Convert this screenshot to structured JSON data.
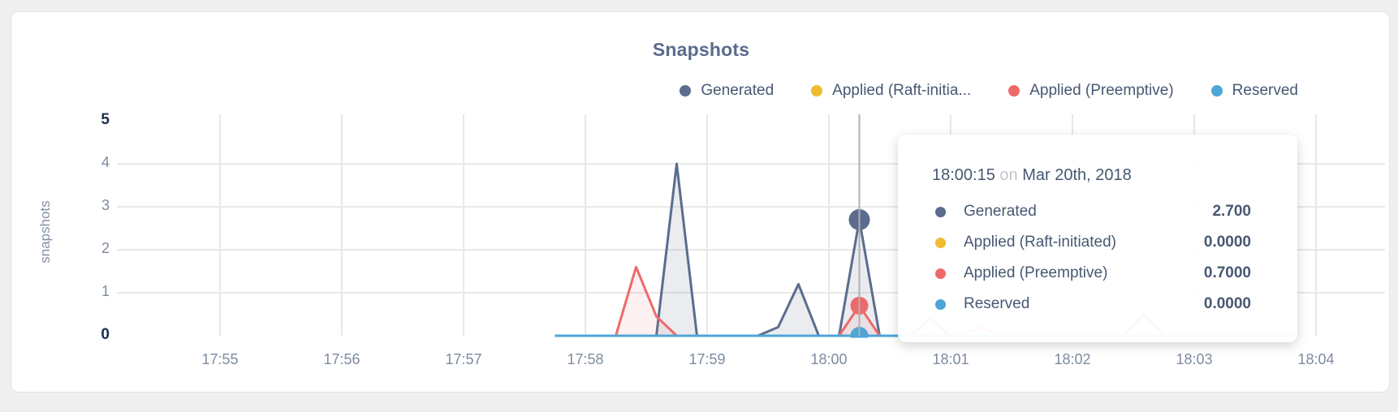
{
  "title": "Snapshots",
  "legend": {
    "items": [
      {
        "label": "Generated",
        "color": "#5b6c8e"
      },
      {
        "label": "Applied (Raft-initia...",
        "color": "#f0bb31"
      },
      {
        "label": "Applied (Preemptive)",
        "color": "#ee6a6a"
      },
      {
        "label": "Reserved",
        "color": "#4da5d8"
      }
    ]
  },
  "tooltip": {
    "time": "18:00:15",
    "conjunction": "on",
    "date": "Mar 20th, 2018",
    "rows": [
      {
        "label": "Generated",
        "value": "2.700",
        "color": "#5b6c8e"
      },
      {
        "label": "Applied (Raft-initiated)",
        "value": "0.0000",
        "color": "#f0bb31"
      },
      {
        "label": "Applied (Preemptive)",
        "value": "0.7000",
        "color": "#ee6a6a"
      },
      {
        "label": "Reserved",
        "value": "0.0000",
        "color": "#4da5d8"
      }
    ]
  },
  "chart_data": {
    "type": "area",
    "title": "Snapshots",
    "ylabel": "snapshots",
    "xlabel": "",
    "ylim": [
      0,
      5
    ],
    "y_ticks": [
      0,
      1,
      2,
      3,
      4,
      5
    ],
    "x_ticks": [
      "17:55",
      "17:56",
      "17:57",
      "17:58",
      "17:59",
      "18:00",
      "18:01",
      "18:02",
      "18:03",
      "18:04"
    ],
    "grid": true,
    "legend_position": "top-right",
    "colors": {
      "grid": "#e8e8e8",
      "hover_line": "#b0b0b0",
      "axis_text": "#7d8ba1",
      "axis_text_bold": "#1b2c4e"
    },
    "series": [
      {
        "name": "Generated",
        "color": "#5b6c8e",
        "fill": "rgba(91,108,142,0.13)",
        "points": [
          [
            "17:57:45",
            0
          ],
          [
            "17:58:35",
            0
          ],
          [
            "17:58:45",
            4.0
          ],
          [
            "17:58:55",
            0
          ],
          [
            "17:59:25",
            0
          ],
          [
            "17:59:35",
            0.2
          ],
          [
            "17:59:45",
            1.2
          ],
          [
            "17:59:55",
            0
          ],
          [
            "18:00:05",
            0
          ],
          [
            "18:00:15",
            2.7
          ],
          [
            "18:00:25",
            0
          ],
          [
            "18:00:40",
            0
          ],
          [
            "18:00:50",
            0.4
          ],
          [
            "18:01:00",
            0
          ],
          [
            "18:02:25",
            0
          ],
          [
            "18:02:35",
            0.5
          ],
          [
            "18:02:45",
            0
          ],
          [
            "18:03:50",
            0
          ]
        ]
      },
      {
        "name": "Applied (Raft-initiated)",
        "color": "#f0bb31",
        "fill": "none",
        "points": [
          [
            "17:57:45",
            0
          ],
          [
            "18:03:50",
            0
          ]
        ]
      },
      {
        "name": "Applied (Preemptive)",
        "color": "#ee6a6a",
        "fill": "rgba(238,106,106,0.10)",
        "points": [
          [
            "17:57:45",
            0
          ],
          [
            "17:58:15",
            0
          ],
          [
            "17:58:25",
            1.6
          ],
          [
            "17:58:35",
            0.45
          ],
          [
            "17:58:45",
            0
          ],
          [
            "18:00:05",
            0
          ],
          [
            "18:00:15",
            0.7
          ],
          [
            "18:00:25",
            0
          ],
          [
            "18:01:05",
            0
          ],
          [
            "18:01:15",
            0.2
          ],
          [
            "18:01:25",
            0
          ],
          [
            "18:03:50",
            0
          ]
        ]
      },
      {
        "name": "Reserved",
        "color": "#4da5d8",
        "fill": "none",
        "points": [
          [
            "17:57:45",
            0
          ],
          [
            "18:03:50",
            0
          ]
        ]
      }
    ],
    "hover": {
      "time": "18:00:15",
      "values": [
        2.7,
        0.0,
        0.7,
        0.0
      ]
    }
  }
}
